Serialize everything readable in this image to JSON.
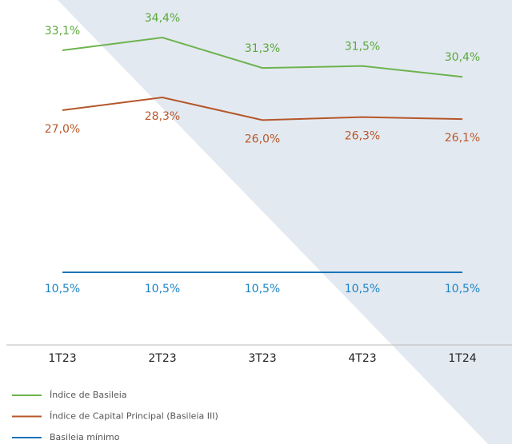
{
  "chart_data": {
    "type": "line",
    "categories": [
      "1T23",
      "2T23",
      "3T23",
      "4T23",
      "1T24"
    ],
    "series": [
      {
        "name": "Índice de Basileia",
        "color": "#6db34f",
        "label_color": "#5aa83a",
        "values": [
          33.1,
          34.4,
          31.3,
          31.5,
          30.4
        ],
        "value_labels": [
          "33,1%",
          "34,4%",
          "31,3%",
          "31,5%",
          "30,4%"
        ]
      },
      {
        "name": "Índice de Capital Principal (Basileia III)",
        "color": "#b5562a",
        "label_color": "#b8582a",
        "values": [
          27.0,
          28.3,
          26.0,
          26.3,
          26.1
        ],
        "value_labels": [
          "27,0%",
          "28,3%",
          "26,0%",
          "26,3%",
          "26,1%"
        ]
      },
      {
        "name": "Basileia mínimo",
        "color": "#1a74b8",
        "label_color": "#1a84c6",
        "values": [
          10.5,
          10.5,
          10.5,
          10.5,
          10.5
        ],
        "value_labels": [
          "10,5%",
          "10,5%",
          "10,5%",
          "10,5%",
          "10,5%"
        ]
      }
    ]
  }
}
